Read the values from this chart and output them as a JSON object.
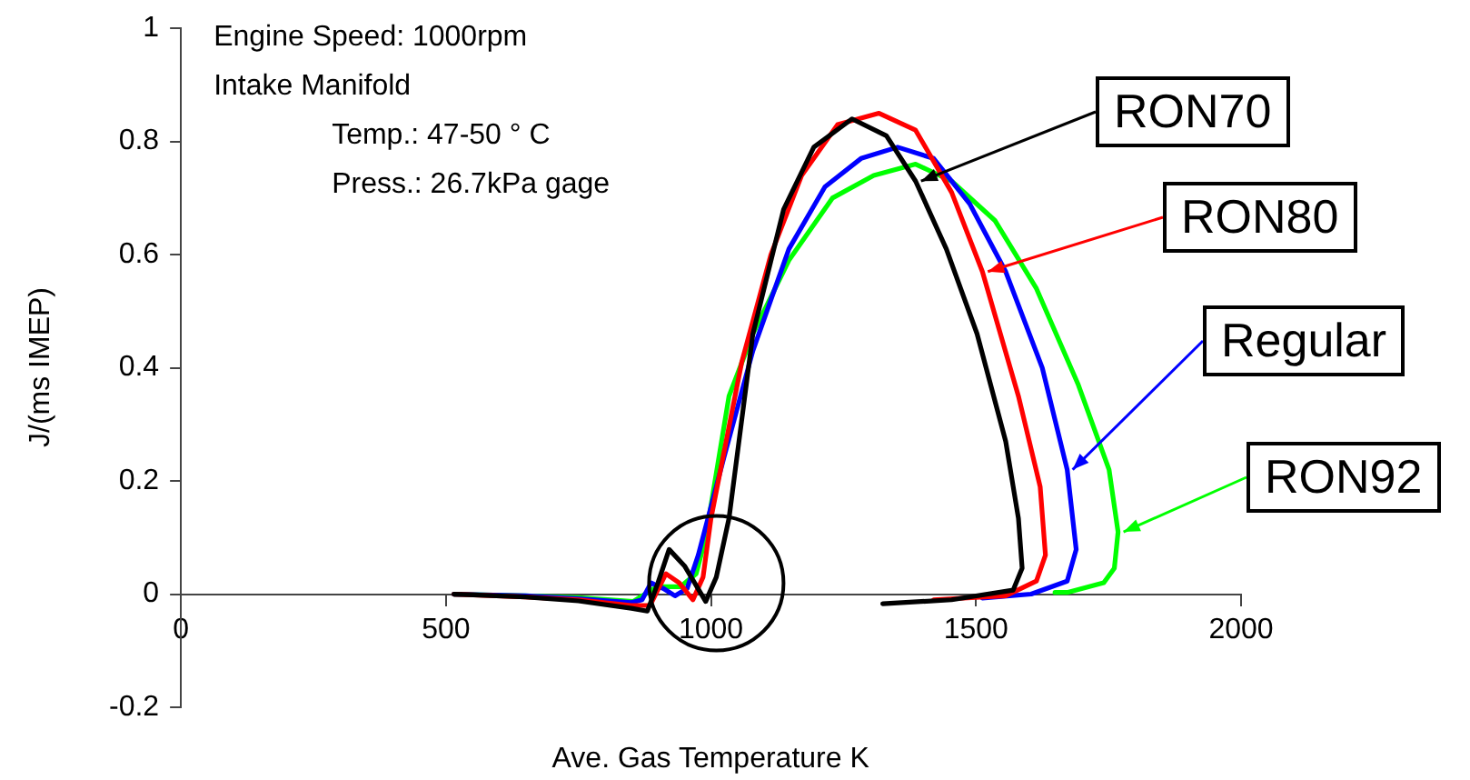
{
  "chart_data": {
    "type": "line",
    "xlabel": "Ave. Gas Temperature  K",
    "ylabel": "J/(ms IMEP)",
    "annotations": [
      "Engine Speed: 1000rpm",
      "Intake Manifold",
      "Temp.: 47-50 ° C",
      "Press.: 26.7kPa gage"
    ],
    "xlim": [
      0,
      2000
    ],
    "xticks": [
      0,
      500,
      1000,
      1500,
      2000
    ],
    "ylim": [
      -0.2,
      1
    ],
    "yticks": [
      -0.2,
      0,
      0.2,
      0.4,
      0.6,
      0.8,
      1
    ],
    "grid": false,
    "legend": "right",
    "marker": "none",
    "line_style": "solid",
    "series": [
      {
        "name": "RON70",
        "color": "#000000",
        "x": [
          515,
          650,
          750,
          850,
          880,
          900,
          921,
          950,
          990,
          1010,
          1034,
          1079,
          1137,
          1194,
          1266,
          1331,
          1386,
          1444,
          1502,
          1556,
          1580,
          1587,
          1570,
          1454,
          1324
        ],
        "values": [
          0,
          -0.005,
          -0.012,
          -0.025,
          -0.03,
          0.02,
          0.079,
          0.05,
          -0.013,
          0.03,
          0.134,
          0.46,
          0.68,
          0.79,
          0.84,
          0.81,
          0.73,
          0.61,
          0.46,
          0.27,
          0.134,
          0.046,
          0.007,
          -0.01,
          -0.017
        ]
      },
      {
        "name": "RON80",
        "color": "#ff0000",
        "x": [
          515,
          650,
          750,
          850,
          885,
          915,
          940,
          966,
          985,
          1000,
          1058,
          1113,
          1171,
          1239,
          1317,
          1386,
          1454,
          1512,
          1580,
          1621,
          1631,
          1614,
          1556,
          1420
        ],
        "values": [
          0,
          -0.005,
          -0.01,
          -0.02,
          -0.02,
          0.036,
          0.02,
          -0.01,
          0.03,
          0.134,
          0.41,
          0.6,
          0.74,
          0.83,
          0.85,
          0.82,
          0.71,
          0.57,
          0.35,
          0.19,
          0.069,
          0.023,
          -0.003,
          -0.01
        ]
      },
      {
        "name": "Regular",
        "color": "#0000ff",
        "x": [
          515,
          650,
          750,
          850,
          870,
          887,
          910,
          932,
          955,
          976,
          1024,
          1079,
          1147,
          1215,
          1283,
          1352,
          1420,
          1488,
          1556,
          1625,
          1672,
          1689,
          1672,
          1604,
          1512
        ],
        "values": [
          0,
          -0.003,
          -0.008,
          -0.015,
          -0.01,
          0.02,
          0.01,
          -0.003,
          0.01,
          0.069,
          0.24,
          0.43,
          0.61,
          0.72,
          0.77,
          0.79,
          0.77,
          0.69,
          0.57,
          0.4,
          0.22,
          0.079,
          0.023,
          0,
          -0.007
        ]
      },
      {
        "name": "RON92",
        "color": "#00ff00",
        "x": [
          515,
          650,
          750,
          853,
          898,
          942,
          972,
          990,
          1034,
          1079,
          1147,
          1229,
          1307,
          1386,
          1454,
          1536,
          1614,
          1693,
          1751,
          1768,
          1761,
          1741,
          1672,
          1649
        ],
        "values": [
          0,
          -0.003,
          -0.006,
          -0.013,
          0.013,
          0.013,
          0.036,
          0.1,
          0.35,
          0.46,
          0.59,
          0.7,
          0.74,
          0.76,
          0.73,
          0.66,
          0.54,
          0.37,
          0.22,
          0.11,
          0.046,
          0.02,
          0.003,
          0.003
        ]
      }
    ]
  }
}
